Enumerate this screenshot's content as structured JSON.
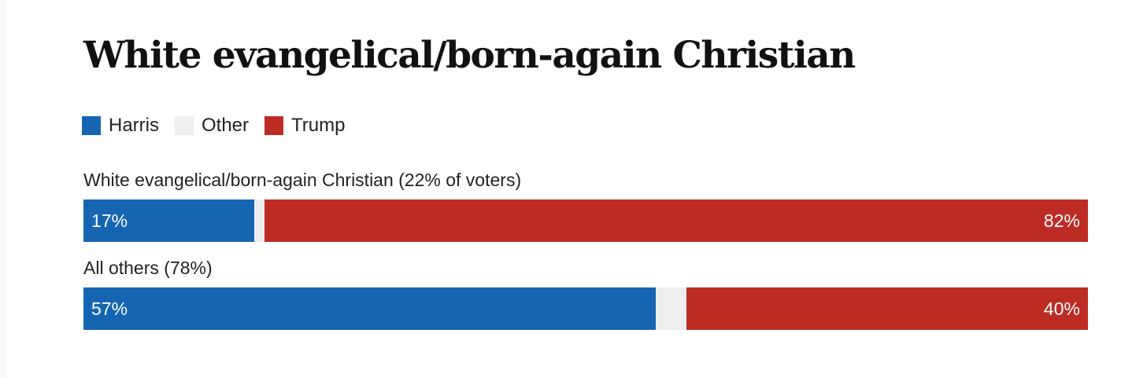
{
  "colors": {
    "harris": "#1565b3",
    "other": "#eeeeee",
    "trump": "#bd2b25"
  },
  "chart_data": {
    "type": "bar",
    "orientation": "horizontal",
    "stacked": true,
    "title": "White evangelical/born-again Christian",
    "legend": [
      "Harris",
      "Other",
      "Trump"
    ],
    "legend_position": "top-left",
    "categories": [
      "White evangelical/born-again Christian (22% of voters)",
      "All others (78%)"
    ],
    "series": [
      {
        "name": "Harris",
        "values": [
          17,
          57
        ],
        "labels": [
          "17%",
          "57%"
        ]
      },
      {
        "name": "Other",
        "values": [
          1,
          3
        ],
        "labels": [
          "",
          ""
        ]
      },
      {
        "name": "Trump",
        "values": [
          82,
          40
        ],
        "labels": [
          "82%",
          "40%"
        ]
      }
    ],
    "xlim": [
      0,
      100
    ],
    "grid": false
  }
}
